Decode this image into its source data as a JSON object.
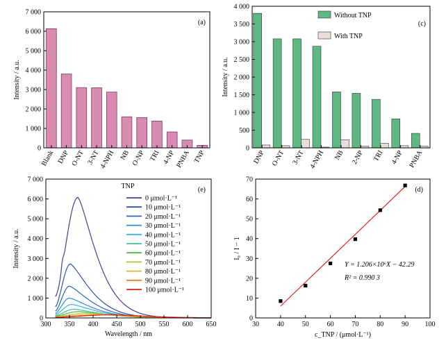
{
  "chart_data": [
    {
      "panel": "(a)",
      "type": "bar",
      "ylabel": "Intensity / a.u.",
      "ylim": [
        0,
        7000
      ],
      "yticks": [
        0,
        1000,
        2000,
        3000,
        4000,
        5000,
        6000,
        7000
      ],
      "ytick_labels": [
        "0",
        "1 000",
        "2 000",
        "3 000",
        "4 000",
        "5 000",
        "6 000",
        "7 000"
      ],
      "categories": [
        "Blank",
        "DNP",
        "O-NT",
        "3-NT",
        "4-NPH",
        "NB",
        "O-NP",
        "TRI",
        "4-NP",
        "PNBA",
        "TNP"
      ],
      "values": [
        6130,
        3800,
        3100,
        3090,
        2870,
        1600,
        1560,
        1380,
        820,
        400,
        130
      ],
      "color": "#d98cb3"
    },
    {
      "panel": "(c)",
      "type": "bar",
      "ylabel": "Intensity / a.u.",
      "ylim": [
        0,
        4000
      ],
      "yticks": [
        0,
        500,
        1000,
        1500,
        2000,
        2500,
        3000,
        3500,
        4000
      ],
      "ytick_labels": [
        "0",
        "500",
        "1 000",
        "1 500",
        "2 000",
        "2 500",
        "3 000",
        "3 500",
        "4 000"
      ],
      "categories": [
        "DNP",
        "O-NT",
        "3-NT",
        "4-NPH",
        "NB",
        "2-NP",
        "TRI",
        "4-NP",
        "PNBA"
      ],
      "series": [
        {
          "name": "Without TNP",
          "color": "#5db882",
          "values": [
            3800,
            3080,
            3080,
            2870,
            1580,
            1540,
            1370,
            820,
            410
          ]
        },
        {
          "name": "With TNP",
          "color": "#e8dcdc",
          "values": [
            80,
            60,
            240,
            20,
            230,
            50,
            130,
            60,
            50
          ]
        }
      ],
      "legend": "top-right"
    },
    {
      "panel": "(e)",
      "type": "line",
      "xlabel": "Wavelength / nm",
      "ylabel": "Intensity / a.u.",
      "xlim": [
        300,
        650
      ],
      "ylim": [
        0,
        7000
      ],
      "xticks": [
        300,
        350,
        400,
        450,
        500,
        550,
        600,
        650
      ],
      "yticks": [
        0,
        1000,
        2000,
        3000,
        4000,
        5000,
        6000,
        7000
      ],
      "ytick_labels": [
        "0",
        "1 000",
        "2 000",
        "3 000",
        "4 000",
        "5 000",
        "6 000",
        "7 000"
      ],
      "legend_title": "TNP",
      "series": [
        {
          "name": "0 μmol·L⁻¹",
          "color": "#3f3f9a",
          "peak": 6080,
          "peak_x": 368,
          "start": 1080
        },
        {
          "name": "10 μmol·L⁻¹",
          "color": "#2f4fa8",
          "peak": 2720,
          "peak_x": 352,
          "start": 560
        },
        {
          "name": "20 μmol·L⁻¹",
          "color": "#2a66c4",
          "peak": 1600,
          "peak_x": 350,
          "start": 340
        },
        {
          "name": "30 μmol·L⁻¹",
          "color": "#2d8fd5",
          "peak": 1000,
          "peak_x": 350,
          "start": 230
        },
        {
          "name": "40 μmol·L⁻¹",
          "color": "#41b0d8",
          "peak": 680,
          "peak_x": 355,
          "start": 170
        },
        {
          "name": "50 μmol·L⁻¹",
          "color": "#3fbfa0",
          "peak": 440,
          "peak_x": 360,
          "start": 120
        },
        {
          "name": "60 μmol·L⁻¹",
          "color": "#4fb94c",
          "peak": 320,
          "peak_x": 370,
          "start": 90
        },
        {
          "name": "70 μmol·L⁻¹",
          "color": "#a6c933",
          "peak": 240,
          "peak_x": 390,
          "start": 70
        },
        {
          "name": "80 μmol·L⁻¹",
          "color": "#e8b62c",
          "peak": 190,
          "peak_x": 410,
          "start": 50
        },
        {
          "name": "90 μmol·L⁻¹",
          "color": "#e87d24",
          "peak": 160,
          "peak_x": 430,
          "start": 40
        },
        {
          "name": "100 μmol·L⁻¹",
          "color": "#e2231a",
          "peak": 160,
          "peak_x": 445,
          "start": 30
        }
      ]
    },
    {
      "panel": "(d)",
      "type": "scatter",
      "xlabel": "c_TNP / (μmol·L⁻¹)",
      "ylabel": "I₀ / I − 1",
      "xlim": [
        30,
        100
      ],
      "ylim": [
        0,
        70
      ],
      "xticks": [
        30,
        40,
        50,
        60,
        70,
        80,
        90,
        100
      ],
      "yticks": [
        0,
        10,
        20,
        30,
        40,
        50,
        60,
        70
      ],
      "x": [
        40,
        50,
        60,
        70,
        80,
        90
      ],
      "y": [
        8.5,
        16.3,
        27.5,
        39.7,
        54.3,
        66.8
      ],
      "fit": {
        "slope": 1.206,
        "intercept": -42.29,
        "x_range": [
          40,
          90
        ],
        "color": "#e02020"
      },
      "equation": "Y = 1.206×10⁶X − 42.29",
      "r2": "R² = 0.990 3"
    }
  ]
}
